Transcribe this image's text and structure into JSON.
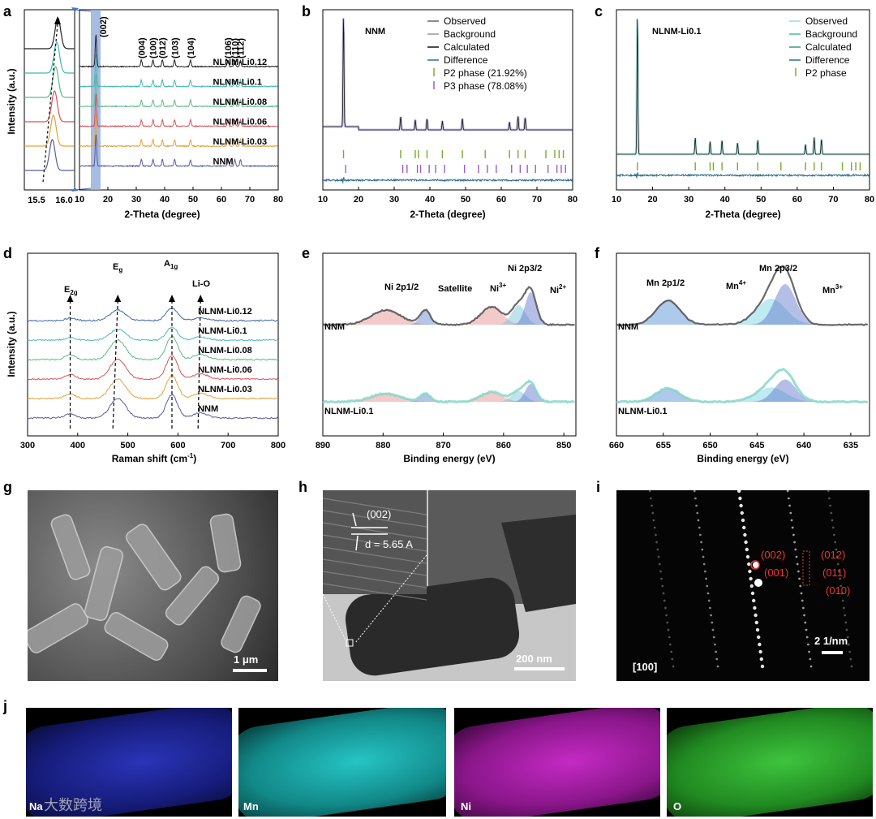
{
  "panels": {
    "a": {
      "label": "a",
      "samples": [
        "NLNM-Li0.12",
        "NLNM-Li0.1",
        "NLNM-Li0.08",
        "NLNM-Li0.06",
        "NLNM-Li0.03",
        "NNM"
      ],
      "colors": [
        "#222222",
        "#3fb8b0",
        "#5bbd8a",
        "#d9535b",
        "#e3a13b",
        "#5b5b9c"
      ],
      "hkl": [
        "(004)",
        "(100)",
        "(012)",
        "(103)",
        "(104)",
        "(106)",
        "(110)",
        "(112)"
      ],
      "hkl_002": "(002)",
      "ylabel": "Intensity (a.u.)",
      "xlabel": "2-Theta  (degree)",
      "inset_ticks": [
        "15.5",
        "16.0"
      ],
      "ticks": [
        "10",
        "20",
        "30",
        "40",
        "50",
        "60",
        "70",
        "80"
      ]
    },
    "b": {
      "label": "b",
      "sample": "NNM",
      "legend": [
        "Observed",
        "Background",
        "Calculated",
        "Difference",
        "P2 phase (21.92%)",
        "P3 phase (78.08%)"
      ],
      "xlabel": "2-Theta (degree)",
      "ticks": [
        "10",
        "20",
        "30",
        "40",
        "50",
        "60",
        "70",
        "80"
      ]
    },
    "c": {
      "label": "c",
      "sample": "NLNM-Li0.1",
      "legend": [
        "Observed",
        "Background",
        "Calculated",
        "Difference",
        "P2 phase"
      ],
      "xlabel": "2-Theta (degree)",
      "ticks": [
        "10",
        "20",
        "30",
        "40",
        "50",
        "60",
        "70",
        "80"
      ]
    },
    "d": {
      "label": "d",
      "peaks": [
        "E",
        "2g",
        "E",
        "g",
        "A",
        "1g",
        "Li-O"
      ],
      "samples": [
        "NLNM-Li0.12",
        "NLNM-Li0.1",
        "NLNM-Li0.08",
        "NLNM-Li0.06",
        "NLNM-Li0.03",
        "NNM"
      ],
      "ylabel": "Intensity (a.u.)",
      "xlabel": "Raman shift (cm",
      "xlabel_sup": "-1",
      "xlabel_end": ")",
      "ticks": [
        "300",
        "400",
        "500",
        "600",
        "700",
        "800"
      ]
    },
    "e": {
      "label": "e",
      "peaks": [
        "Ni 2p1/2",
        "Satellite",
        "Ni",
        "3+",
        "Ni 2p3/2",
        "Ni",
        "2+"
      ],
      "samples": [
        "NNM",
        "NLNM-Li0.1"
      ],
      "xlabel": "Binding energy (eV)",
      "ticks": [
        "890",
        "880",
        "870",
        "860",
        "850"
      ]
    },
    "f": {
      "label": "f",
      "peaks": [
        "Mn 2p1/2",
        "Mn",
        "4+",
        "Mn 2p3/2",
        "Mn",
        "3+"
      ],
      "samples": [
        "NNM",
        "NLNM-Li0.1"
      ],
      "xlabel": "Binding energy (eV)",
      "ticks": [
        "660",
        "655",
        "650",
        "645",
        "640",
        "635"
      ]
    },
    "g": {
      "label": "g",
      "scale": "1 μm"
    },
    "h": {
      "label": "h",
      "plane": "(002)",
      "dspacing": "d = 5.65 A",
      "scale": "200 nm"
    },
    "i": {
      "label": "i",
      "zone": "[100]",
      "scale": "2 1/nm",
      "spots": [
        "(002)",
        "(001)",
        "(012)",
        "(011)",
        "(010)"
      ]
    },
    "j": {
      "label": "j",
      "elements": [
        "Na",
        "Mn",
        "Ni",
        "O"
      ],
      "watermark": "大数跨境"
    }
  },
  "chart_data": [
    {
      "type": "line",
      "title": "",
      "xlabel": "2-Theta (degree)",
      "ylabel": "Intensity (a.u.)",
      "xlim": [
        10,
        80
      ],
      "series": [
        {
          "name": "NLNM-Li0.12"
        },
        {
          "name": "NLNM-Li0.1"
        },
        {
          "name": "NLNM-Li0.08"
        },
        {
          "name": "NLNM-Li0.06"
        },
        {
          "name": "NLNM-Li0.03"
        },
        {
          "name": "NNM"
        }
      ],
      "peak_positions": [
        15.8,
        31.8,
        35.9,
        39.2,
        43.5,
        49.1,
        62.3,
        64.7,
        66.7
      ]
    },
    {
      "type": "line",
      "xlabel": "2-Theta (degree)",
      "xlim": [
        10,
        80
      ],
      "series": [
        {
          "name": "Observed"
        },
        {
          "name": "Background"
        },
        {
          "name": "Calculated"
        },
        {
          "name": "Difference"
        },
        {
          "name": "P2 phase (21.92%)"
        },
        {
          "name": "P3 phase (78.08%)"
        }
      ]
    },
    {
      "type": "line",
      "xlabel": "2-Theta (degree)",
      "xlim": [
        10,
        80
      ],
      "series": [
        {
          "name": "Observed"
        },
        {
          "name": "Background"
        },
        {
          "name": "Calculated"
        },
        {
          "name": "Difference"
        },
        {
          "name": "P2 phase"
        }
      ]
    },
    {
      "type": "line",
      "xlabel": "Raman shift (cm-1)",
      "ylabel": "Intensity (a.u.)",
      "xlim": [
        300,
        800
      ],
      "peak_positions": [
        385,
        480,
        588,
        645
      ]
    },
    {
      "type": "line",
      "xlabel": "Binding energy (eV)",
      "xlim": [
        890,
        848
      ],
      "peak_positions": [
        879.5,
        873,
        862,
        856,
        854.5
      ]
    },
    {
      "type": "line",
      "xlabel": "Binding energy (eV)",
      "xlim": [
        660,
        633
      ],
      "peak_positions": [
        654,
        643.5,
        642
      ]
    }
  ]
}
